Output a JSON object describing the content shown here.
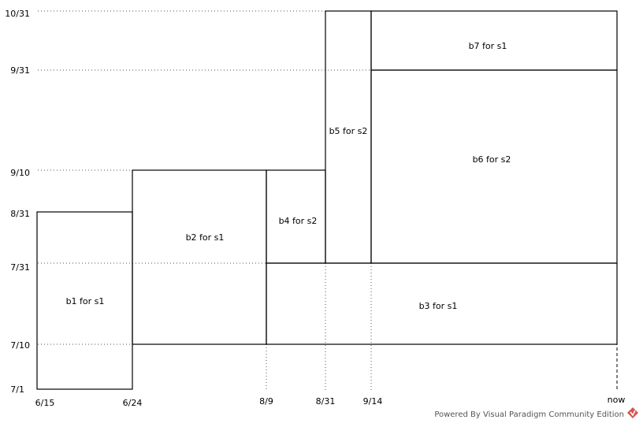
{
  "y_ticks": [
    {
      "label": "10/31"
    },
    {
      "label": "9/31"
    },
    {
      "label": "9/10"
    },
    {
      "label": "8/31"
    },
    {
      "label": "7/31"
    },
    {
      "label": "7/10"
    },
    {
      "label": "7/1"
    }
  ],
  "x_ticks": [
    {
      "label": "6/15"
    },
    {
      "label": "6/24"
    },
    {
      "label": "8/9"
    },
    {
      "label": "8/31"
    },
    {
      "label": "9/14"
    },
    {
      "label": "now"
    }
  ],
  "blocks": [
    {
      "label": "b1 for s1",
      "x_start": "6/15",
      "x_end": "6/24",
      "y_start": "7/1",
      "y_end": "8/31"
    },
    {
      "label": "b2 for s1",
      "x_start": "6/24",
      "x_end": "8/9",
      "y_start": "7/10",
      "y_end": "9/10"
    },
    {
      "label": "b3 for s1",
      "x_start": "8/9",
      "x_end": "now",
      "y_start": "7/10",
      "y_end": "7/31"
    },
    {
      "label": "b4 for s2",
      "x_start": "8/9",
      "x_end": "8/31",
      "y_start": "7/31",
      "y_end": "9/10"
    },
    {
      "label": "b5 for s2",
      "x_start": "8/31",
      "x_end": "9/14",
      "y_start": "7/31",
      "y_end": "10/31"
    },
    {
      "label": "b6 for s2",
      "x_start": "9/14",
      "x_end": "now",
      "y_start": "7/31",
      "y_end": "9/31"
    },
    {
      "label": "b7 for s1",
      "x_start": "9/14",
      "x_end": "now",
      "y_start": "9/31",
      "y_end": "10/31"
    }
  ],
  "footer": {
    "text": "Powered By Visual Paradigm Community Edition",
    "logo_icon": "visual-paradigm-logo-icon",
    "logo_color": "#d9534f"
  }
}
